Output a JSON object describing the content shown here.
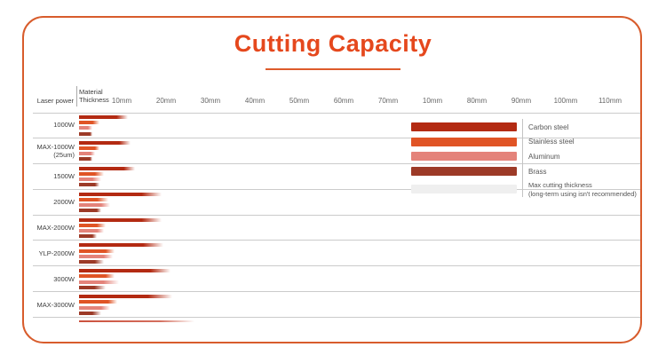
{
  "title": "Cutting Capacity",
  "colors": {
    "accent": "#e5481d",
    "frame_border": "#d85c2c",
    "carbon_steel": "#b32a12",
    "stainless_steel": "#e05425",
    "aluminum": "#e4837a",
    "brass": "#9c3a27",
    "max_thickness_gray": "#efefef",
    "separator": "#cbcbcb"
  },
  "header": {
    "laser_power_label": "Laser power",
    "material_thickness_line1": "Material",
    "material_thickness_line2": "Thickness",
    "ticks": [
      "10mm",
      "20mm",
      "30mm",
      "40mm",
      "50mm",
      "60mm",
      "70mm",
      "10mm",
      "80mm",
      "90mm",
      "100mm",
      "110mm"
    ]
  },
  "legend": {
    "items": [
      {
        "label": "Carbon steel",
        "color_key": "carbon_steel"
      },
      {
        "label": "Stainless steel",
        "color_key": "stainless_steel"
      },
      {
        "label": "Aluminum",
        "color_key": "aluminum"
      },
      {
        "label": "Brass",
        "color_key": "brass"
      }
    ],
    "max_item": {
      "label_line1": "Max cutting thickness",
      "label_line2": "(long-term using isn't recommended)",
      "color_key": "max_thickness_gray"
    }
  },
  "chart_data": {
    "type": "bar",
    "unit": "mm",
    "title": "Cutting Capacity",
    "xlabel": "Material Thickness",
    "ylabel": "Laser power",
    "axis_tick_labels_mm": [
      10,
      20,
      30,
      40,
      50,
      60,
      70,
      10,
      80,
      90,
      100,
      110
    ],
    "materials": [
      "Carbon steel",
      "Stainless steel",
      "Aluminum",
      "Brass"
    ],
    "value_format": "[recommended_mm, max_mm] — faded bar tail shows max cutting thickness (long-term using isn't recommended)",
    "rows": [
      {
        "label": "1000W",
        "sub": "",
        "values": {
          "carbon_steel": [
            8.5,
            11
          ],
          "stainless_steel": [
            3,
            4.5
          ],
          "aluminum": [
            2,
            3
          ],
          "brass": [
            2.5,
            3
          ]
        }
      },
      {
        "label": "MAX-1000W",
        "sub": "(25um)",
        "values": {
          "carbon_steel": [
            9,
            11.5
          ],
          "stainless_steel": [
            3.5,
            4.5
          ],
          "aluminum": [
            2.5,
            3.5
          ],
          "brass": [
            2.5,
            3
          ]
        }
      },
      {
        "label": "1500W",
        "sub": "",
        "values": {
          "carbon_steel": [
            10,
            12.5
          ],
          "stainless_steel": [
            3.5,
            5.5
          ],
          "aluminum": [
            3,
            5
          ],
          "brass": [
            3.5,
            4.5
          ]
        }
      },
      {
        "label": "2000W",
        "sub": "",
        "values": {
          "carbon_steel": [
            14,
            18.5
          ],
          "stainless_steel": [
            4,
            6.5
          ],
          "aluminum": [
            5,
            7
          ],
          "brass": [
            4,
            5
          ]
        }
      },
      {
        "label": "MAX-2000W",
        "sub": "",
        "values": {
          "carbon_steel": [
            14,
            18.5
          ],
          "stainless_steel": [
            4,
            6
          ],
          "aluminum": [
            4,
            5.5
          ],
          "brass": [
            3,
            4
          ]
        }
      },
      {
        "label": "YLP-2000W",
        "sub": "",
        "values": {
          "carbon_steel": [
            14.5,
            19
          ],
          "stainless_steel": [
            6,
            8
          ],
          "aluminum": [
            5.5,
            7.5
          ],
          "brass": [
            3.5,
            5.5
          ]
        }
      },
      {
        "label": "3000W",
        "sub": "",
        "values": {
          "carbon_steel": [
            16,
            20.5
          ],
          "stainless_steel": [
            6,
            8
          ],
          "aluminum": [
            5.5,
            9
          ],
          "brass": [
            3.5,
            6
          ]
        }
      },
      {
        "label": "MAX-3000W",
        "sub": "",
        "values": {
          "carbon_steel": [
            15.5,
            21
          ],
          "stainless_steel": [
            6.5,
            8.5
          ],
          "aluminum": [
            5,
            7
          ],
          "brass": [
            3,
            5
          ]
        }
      }
    ]
  }
}
